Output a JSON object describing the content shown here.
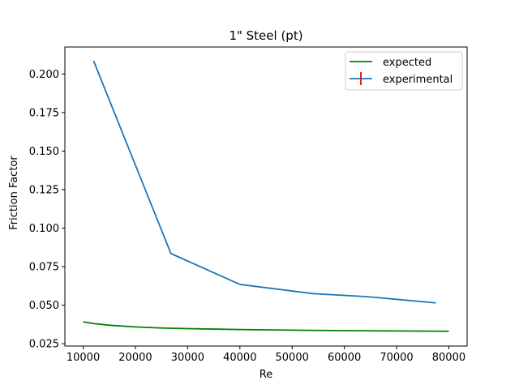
{
  "chart_data": {
    "type": "line",
    "title": "1\" Steel (pt)",
    "xlabel": "Re",
    "ylabel": "Friction Factor",
    "xlim": [
      6500,
      83500
    ],
    "ylim": [
      0.0235,
      0.2175
    ],
    "xticks": [
      10000,
      20000,
      30000,
      40000,
      50000,
      60000,
      70000,
      80000
    ],
    "xtick_labels": [
      "10000",
      "20000",
      "30000",
      "40000",
      "50000",
      "60000",
      "70000",
      "80000"
    ],
    "yticks": [
      0.025,
      0.05,
      0.075,
      0.1,
      0.125,
      0.15,
      0.175,
      0.2
    ],
    "ytick_labels": [
      "0.025",
      "0.050",
      "0.075",
      "0.100",
      "0.125",
      "0.150",
      "0.175",
      "0.200"
    ],
    "grid": false,
    "legend_position": "top-right",
    "series": [
      {
        "name": "expected",
        "color": "#008000",
        "x": [
          10000,
          12000,
          15000,
          20000,
          25000,
          30000,
          35000,
          40000,
          50000,
          60000,
          70000,
          80000
        ],
        "y": [
          0.0392,
          0.0381,
          0.037,
          0.0359,
          0.0352,
          0.0348,
          0.0345,
          0.0342,
          0.0338,
          0.0335,
          0.0333,
          0.0331
        ]
      },
      {
        "name": "experimental",
        "color": "#1f77b4",
        "legend_marker": "errorbar",
        "legend_marker_color": "#d62728",
        "x": [
          12000,
          26800,
          40000,
          54000,
          64500,
          77500
        ],
        "y": [
          0.2085,
          0.0835,
          0.0635,
          0.0575,
          0.0555,
          0.0515
        ]
      }
    ]
  }
}
